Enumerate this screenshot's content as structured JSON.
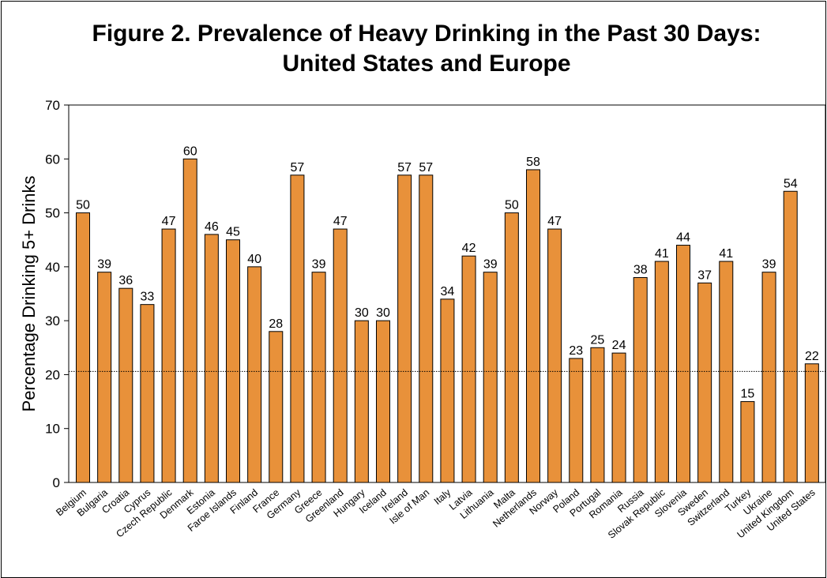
{
  "chart_data": {
    "type": "bar",
    "title_lines": [
      "Figure 2. Prevalence of Heavy Drinking in the Past 30 Days:",
      "United States and Europe"
    ],
    "xlabel": "",
    "ylabel": "Percentage Drinking 5+ Drinks",
    "ylim": [
      0,
      70
    ],
    "yticks": [
      0,
      10,
      20,
      30,
      40,
      50,
      60,
      70
    ],
    "categories": [
      "Belgium",
      "Bulgaria",
      "Croatia",
      "Cyprus",
      "Czech Republic",
      "Denmark",
      "Estonia",
      "Faroe Islands",
      "Finland",
      "France",
      "Germany",
      "Greece",
      "Greenland",
      "Hungary",
      "Iceland",
      "Ireland",
      "Isle of Man",
      "Italy",
      "Latvia",
      "Lithuania",
      "Malta",
      "Netherlands",
      "Norway",
      "Poland",
      "Portugal",
      "Romania",
      "Russia",
      "Slovak Republic",
      "Slovenia",
      "Sweden",
      "Switzerland",
      "Turkey",
      "Ukraine",
      "United Kingdom",
      "United  States"
    ],
    "values": [
      50,
      39,
      36,
      33,
      47,
      60,
      46,
      45,
      40,
      28,
      57,
      39,
      47,
      30,
      30,
      57,
      57,
      34,
      42,
      39,
      50,
      58,
      47,
      23,
      25,
      24,
      38,
      41,
      44,
      37,
      41,
      15,
      39,
      54,
      22
    ],
    "reference_line": 20.6,
    "bar_color": "#E8913A",
    "bar_edge_color": "#000000",
    "grid": false
  }
}
